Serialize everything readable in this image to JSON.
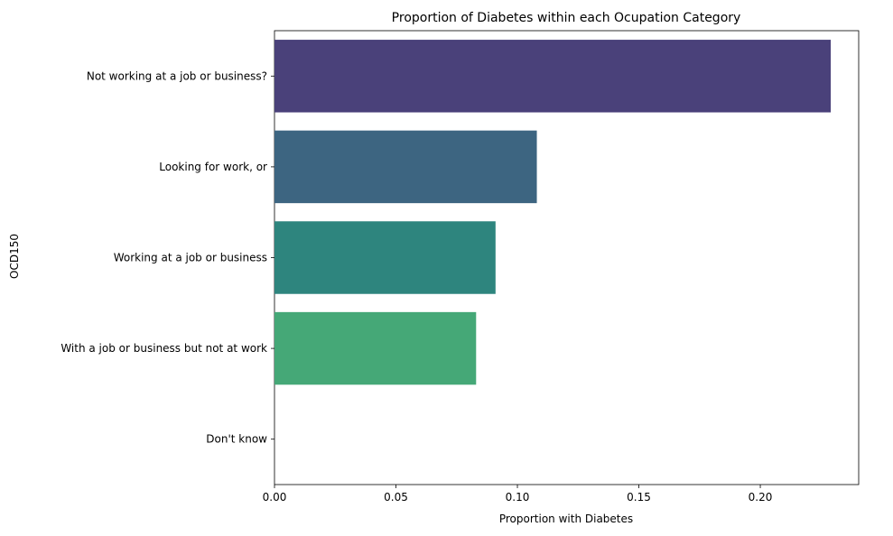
{
  "chart_data": {
    "type": "bar",
    "orientation": "horizontal",
    "title": "Proportion of Diabetes within each Ocupation Category",
    "xlabel": "Proportion with Diabetes",
    "ylabel": "OCD150",
    "categories": [
      "Not working at a job or business?",
      "Looking for work, or",
      "Working at a job or business",
      "With a job or business but not at work",
      "Don't know"
    ],
    "values": [
      0.229,
      0.108,
      0.091,
      0.083,
      0.0
    ],
    "colors": [
      "#4a417a",
      "#3d6581",
      "#2e857e",
      "#45a877",
      "#7ad151"
    ],
    "xlim": [
      0,
      0.2405
    ],
    "xticks": [
      0.0,
      0.05,
      0.1,
      0.15,
      0.2
    ],
    "xtick_labels": [
      "0.00",
      "0.05",
      "0.10",
      "0.15",
      "0.20"
    ],
    "grid": false,
    "legend": "none"
  }
}
